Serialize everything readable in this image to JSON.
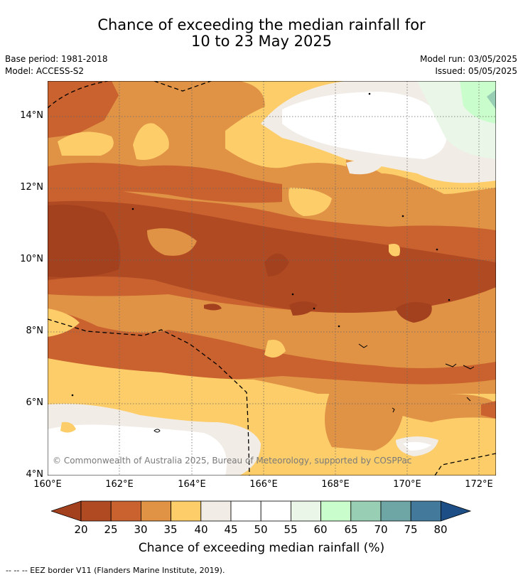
{
  "title": {
    "line1": "Chance of exceeding the median rainfall for",
    "line2": "10 to 23 May 2025"
  },
  "meta": {
    "base_period": "Base period: 1981-2018",
    "model": "Model: ACCESS-S2",
    "model_run": "Model run: 03/05/2025",
    "issued": "Issued: 05/05/2025"
  },
  "map": {
    "lat_labels": [
      "14°N",
      "12°N",
      "10°N",
      "8°N",
      "6°N",
      "4°N"
    ],
    "lon_labels": [
      "160°E",
      "162°E",
      "164°E",
      "166°E",
      "168°E",
      "170°E",
      "172°E"
    ],
    "credit": "© Commonwealth of Australia 2025, Bureau of Meteorology, supported by COSPPac"
  },
  "colorbar": {
    "ticks": [
      "20",
      "25",
      "30",
      "35",
      "40",
      "45",
      "50",
      "55",
      "60",
      "65",
      "70",
      "75",
      "80"
    ],
    "colors": {
      "below20": "#a3411f",
      "20-25": "#b04a23",
      "25-30": "#c9622f",
      "30-35": "#e09245",
      "35-40": "#fdcd6a",
      "40-45": "#f1ece6",
      "45-50": "#ffffff",
      "50-55": "#ffffff",
      "55-60": "#eaf6e8",
      "60-65": "#c9fdcb",
      "65-70": "#98ceb3",
      "70-75": "#6ea6a6",
      "75-80": "#437a9c",
      "above80": "#1d4f86"
    },
    "label": "Chance of exceeding median rainfall (%)"
  },
  "footer": {
    "eez": "--  --  -- EEZ border V11 (Flanders Marine Institute, 2019)."
  }
}
